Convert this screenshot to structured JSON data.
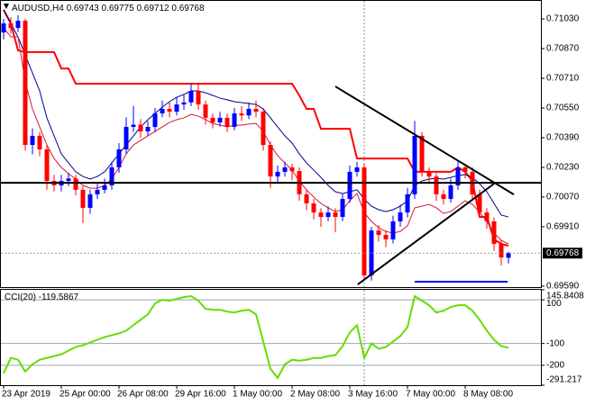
{
  "chart_data": [
    {
      "type": "candlestick",
      "symbol": "AUDUSD,H4",
      "categories": [
        "23 Apr 2019",
        null,
        null,
        null,
        null,
        null,
        null,
        null,
        "25 Apr 00:00",
        null,
        null,
        null,
        null,
        null,
        null,
        null,
        "26 Apr 08:00",
        null,
        null,
        null,
        null,
        null,
        null,
        null,
        "29 Apr 16:00",
        null,
        null,
        null,
        null,
        null,
        null,
        null,
        "1 May 00:00",
        null,
        null,
        null,
        null,
        null,
        null,
        null,
        "2 May 08:00",
        null,
        null,
        null,
        null,
        null,
        null,
        null,
        "3 May 16:00",
        null,
        null,
        null,
        null,
        null,
        null,
        null,
        "7 May 00:00",
        null,
        null,
        null,
        null,
        null,
        null,
        null,
        "8 May 08:00",
        null,
        null,
        null,
        null,
        null,
        null
      ],
      "open": [
        0.70957,
        0.71006,
        0.70981,
        0.7102,
        0.70351,
        0.704,
        0.70327,
        0.70157,
        0.70133,
        0.70157,
        0.7017,
        0.70109,
        0.70012,
        0.70085,
        0.70109,
        0.70133,
        0.7023,
        0.70327,
        0.70448,
        0.7046,
        0.70424,
        0.70448,
        0.70521,
        0.70545,
        0.7053,
        0.70569,
        0.7058,
        0.70642,
        0.70569,
        0.70497,
        0.70472,
        0.70497,
        0.70448,
        0.70521,
        0.7051,
        0.70545,
        0.7053,
        0.70351,
        0.70181,
        0.70206,
        0.7023,
        0.7021,
        0.70085,
        0.70036,
        0.69987,
        0.69963,
        0.69987,
        0.69963,
        0.7006,
        0.70206,
        0.7023,
        0.69648,
        0.6989,
        0.69866,
        0.69842,
        0.69939,
        0.69987,
        0.70085,
        0.704,
        0.70206,
        0.70181,
        0.70085,
        0.7006,
        0.70133,
        0.7023,
        0.70206,
        0.70085,
        0.69987,
        0.69939,
        0.69818,
        0.69743
      ],
      "high": [
        0.7103,
        0.7104,
        0.7105,
        0.7103,
        0.7044,
        0.7042,
        0.7035,
        0.7019,
        0.7019,
        0.702,
        0.7019,
        0.7013,
        0.7011,
        0.7014,
        0.7017,
        0.7026,
        0.7036,
        0.705,
        0.7056,
        0.7049,
        0.7048,
        0.7055,
        0.7059,
        0.7058,
        0.7061,
        0.7062,
        0.7068,
        0.7068,
        0.7059,
        0.7052,
        0.7053,
        0.7052,
        0.7055,
        0.7056,
        0.7058,
        0.7059,
        0.7055,
        0.7037,
        0.7024,
        0.7026,
        0.7025,
        0.7023,
        0.7011,
        0.7006,
        0.7001,
        0.7002,
        0.7001,
        0.7009,
        0.7024,
        0.7026,
        0.7025,
        0.6991,
        0.6992,
        0.6989,
        0.6997,
        0.7003,
        0.7012,
        0.7048,
        0.7042,
        0.7023,
        0.702,
        0.7011,
        0.7017,
        0.7026,
        0.7025,
        0.7023,
        0.7011,
        0.7001,
        0.6996,
        0.6984,
        0.69775
      ],
      "low": [
        0.7092,
        0.7095,
        0.7096,
        0.7032,
        0.703,
        0.7029,
        0.7011,
        0.701,
        0.701,
        0.7013,
        0.7008,
        0.6993,
        0.6998,
        0.7006,
        0.7009,
        0.7011,
        0.702,
        0.703,
        0.7042,
        0.7039,
        0.704,
        0.7042,
        0.705,
        0.705,
        0.7051,
        0.7054,
        0.7056,
        0.7054,
        0.7046,
        0.7044,
        0.7045,
        0.7042,
        0.7043,
        0.7048,
        0.7049,
        0.705,
        0.7032,
        0.7012,
        0.7015,
        0.7018,
        0.7016,
        0.7005,
        0.7,
        0.6995,
        0.6991,
        0.6994,
        0.6988,
        0.6994,
        0.7004,
        0.7018,
        0.6962,
        0.6962,
        0.6983,
        0.698,
        0.6982,
        0.6991,
        0.6996,
        0.7006,
        0.7018,
        0.7014,
        0.7005,
        0.7003,
        0.7004,
        0.7011,
        0.7017,
        0.7006,
        0.6996,
        0.699,
        0.6978,
        0.697,
        0.69712
      ],
      "close": [
        0.71006,
        0.70981,
        0.7102,
        0.70351,
        0.704,
        0.70327,
        0.70157,
        0.70133,
        0.70157,
        0.7017,
        0.70109,
        0.70012,
        0.70085,
        0.70109,
        0.70133,
        0.7023,
        0.70327,
        0.70448,
        0.7046,
        0.70424,
        0.70448,
        0.70521,
        0.70545,
        0.7053,
        0.70569,
        0.7058,
        0.70642,
        0.70569,
        0.70497,
        0.70472,
        0.70497,
        0.70448,
        0.70521,
        0.7051,
        0.70545,
        0.7053,
        0.70351,
        0.70181,
        0.70206,
        0.7023,
        0.7021,
        0.70085,
        0.70036,
        0.69987,
        0.69963,
        0.69987,
        0.69963,
        0.7006,
        0.70206,
        0.7023,
        0.69648,
        0.6989,
        0.69866,
        0.69842,
        0.69939,
        0.69987,
        0.70085,
        0.704,
        0.70206,
        0.70181,
        0.70085,
        0.7006,
        0.70133,
        0.7023,
        0.70206,
        0.70085,
        0.69987,
        0.69939,
        0.69818,
        0.69745,
        0.69768
      ],
      "up_color": "#0000ff",
      "down_color": "#ff0000",
      "lines": [
        {
          "color": "#ff0000",
          "width": 2,
          "values": [
            0.71079,
            0.71006,
            0.7086,
            0.70851,
            0.70851,
            0.70851,
            0.70851,
            0.70851,
            0.70763,
            0.70763,
            0.70681,
            0.70681,
            0.70681,
            0.70681,
            0.70681,
            0.70681,
            0.70681,
            0.70681,
            0.70681,
            0.70681,
            0.70681,
            0.70681,
            0.70681,
            0.70681,
            0.70681,
            0.70681,
            0.70681,
            0.70681,
            0.70681,
            0.70681,
            0.70681,
            0.70681,
            0.70681,
            0.70681,
            0.70681,
            0.70681,
            0.70681,
            0.70681,
            0.70681,
            0.70681,
            0.70681,
            0.70618,
            0.70545,
            0.70545,
            0.70438,
            0.70438,
            0.70438,
            0.70438,
            0.70438,
            0.70278,
            0.70278,
            0.70278,
            0.70278,
            0.70278,
            0.70278,
            0.70278,
            0.70278,
            0.70206,
            0.70206,
            0.70206,
            0.70206,
            0.70206,
            0.70206,
            0.7023,
            0.70206,
            0.70157,
            0.69963,
            0.69963,
            0.69842,
            0.69818,
            0.69808
          ]
        },
        {
          "color": "#00008b",
          "width": 1,
          "values": [
            0.71079,
            0.71006,
            0.70933,
            0.70836,
            0.70739,
            0.70642,
            0.70497,
            0.704,
            0.70303,
            0.70254,
            0.70206,
            0.70181,
            0.70167,
            0.70181,
            0.70206,
            0.70254,
            0.70303,
            0.70351,
            0.704,
            0.70448,
            0.70487,
            0.70521,
            0.70555,
            0.70584,
            0.70608,
            0.70623,
            0.70642,
            0.70642,
            0.70632,
            0.70618,
            0.70603,
            0.70594,
            0.70584,
            0.70579,
            0.70574,
            0.70569,
            0.70545,
            0.70497,
            0.70448,
            0.704,
            0.70361,
            0.70303,
            0.70254,
            0.70215,
            0.70176,
            0.70133,
            0.70099,
            0.70089,
            0.70099,
            0.70109,
            0.7006,
            0.70021,
            0.70002,
            0.69992,
            0.70002,
            0.70021,
            0.7005,
            0.70133,
            0.70157,
            0.70167,
            0.70172,
            0.70167,
            0.70176,
            0.70186,
            0.70191,
            0.70176,
            0.70142,
            0.70099,
            0.70036,
            0.69973,
            0.69963
          ]
        },
        {
          "color": "#dc143c",
          "width": 1,
          "values": [
            0.70982,
            0.70933,
            0.70933,
            0.70691,
            0.70545,
            0.70448,
            0.70351,
            0.70278,
            0.7023,
            0.70196,
            0.70167,
            0.70133,
            0.70118,
            0.70118,
            0.70133,
            0.70167,
            0.7023,
            0.70303,
            0.70351,
            0.70375,
            0.704,
            0.70424,
            0.70448,
            0.70472,
            0.70487,
            0.70497,
            0.70516,
            0.70506,
            0.70487,
            0.70467,
            0.70458,
            0.70448,
            0.70458,
            0.70458,
            0.70463,
            0.70467,
            0.70424,
            0.70351,
            0.70293,
            0.70254,
            0.70215,
            0.70157,
            0.70109,
            0.7007,
            0.70036,
            0.70012,
            0.69992,
            0.70002,
            0.7005,
            0.70089,
            0.69987,
            0.69939,
            0.69905,
            0.69885,
            0.69876,
            0.69885,
            0.69915,
            0.70012,
            0.70021,
            0.70031,
            0.70012,
            0.69982,
            0.69992,
            0.70021,
            0.7005,
            0.70031,
            0.69987,
            0.69939,
            0.69876,
            0.69837,
            0.69818
          ]
        }
      ],
      "trendlines": [
        {
          "x": [
            46,
            70.75
          ],
          "y": [
            0.70666,
            0.70084
          ],
          "color": "#000000"
        },
        {
          "x": [
            49.1,
            68
          ],
          "y": [
            0.69599,
            0.70142
          ],
          "color": "#000000"
        },
        {
          "x": [
            -0.5,
            74.6
          ],
          "y": [
            0.70147,
            0.70147
          ],
          "color": "#000000"
        },
        {
          "x": [
            57,
            69.9
          ],
          "y": [
            0.69614,
            0.69614
          ],
          "color": "#0000ff"
        }
      ],
      "ylim": [
        0.69585,
        0.71127
      ],
      "yticks": [
        {
          "value": 0.7103,
          "label": "0.71030"
        },
        {
          "value": 0.7087,
          "label": "0.70870"
        },
        {
          "value": 0.7071,
          "label": "0.70710"
        },
        {
          "value": 0.7055,
          "label": "0.70550"
        },
        {
          "value": 0.7039,
          "label": "0.70390"
        },
        {
          "value": 0.7023,
          "label": "0.70230"
        },
        {
          "value": 0.7007,
          "label": "0.70070"
        },
        {
          "value": 0.6991,
          "label": "0.69910"
        },
        {
          "value": 0.6959,
          "label": "0.69590"
        }
      ]
    },
    {
      "type": "line",
      "title": "CCI(20)",
      "color": "#66dd00",
      "values": [
        -237.0,
        -166.3,
        -174.6,
        -228.7,
        -195.4,
        -174.6,
        -166.3,
        -157.9,
        -149.6,
        -132.9,
        -116.3,
        -108.0,
        -95.5,
        -83.0,
        -70.5,
        -62.2,
        -53.9,
        -41.4,
        -16.4,
        8.5,
        33.5,
        83.4,
        100.1,
        95.9,
        104.2,
        112.5,
        116.7,
        95.9,
        58.4,
        54.3,
        54.3,
        46.0,
        41.8,
        50.1,
        54.3,
        33.5,
        -91.3,
        -216.2,
        -257.8,
        -195.4,
        -174.6,
        -178.7,
        -174.6,
        -166.3,
        -166.3,
        -157.9,
        -153.8,
        -112.2,
        -49.7,
        -16.4,
        -166.3,
        -99.7,
        -124.6,
        -116.3,
        -91.3,
        -66.4,
        -24.8,
        116.7,
        95.9,
        75.1,
        41.8,
        50.1,
        66.8,
        75.1,
        75.1,
        50.1,
        8.5,
        -41.4,
        -83.0,
        -112.2,
        -119.5867
      ],
      "ylim": [
        -291.217,
        145.8408
      ],
      "yticks": [
        145.8408,
        100,
        -100,
        -200,
        -291.217
      ]
    }
  ]
}
